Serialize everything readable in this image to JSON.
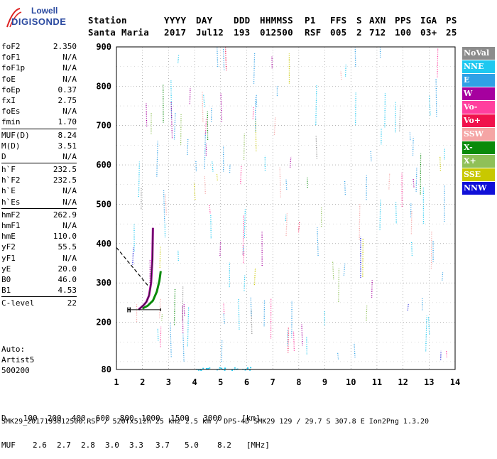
{
  "logo": {
    "line1": "Lowell",
    "line2": "DIGISONDE"
  },
  "header": {
    "labels": [
      "Station",
      "YYYY",
      "DAY",
      "DDD",
      "HHMMSS",
      "P1",
      "FFS",
      "S",
      "AXN",
      "PPS",
      "IGA",
      "PS"
    ],
    "values": [
      "Santa Maria",
      "2017",
      "Jul12",
      "193",
      "012500",
      "RSF",
      "005",
      "2",
      "712",
      "100",
      "03+",
      "25"
    ]
  },
  "params": {
    "group1": [
      {
        "name": "foF2",
        "value": "2.350"
      },
      {
        "name": "foF1",
        "value": "N/A"
      },
      {
        "name": "foF1p",
        "value": "N/A"
      },
      {
        "name": "foE",
        "value": "N/A"
      },
      {
        "name": "foEp",
        "value": "0.37"
      },
      {
        "name": "fxI",
        "value": "2.75"
      },
      {
        "name": "foEs",
        "value": "N/A"
      },
      {
        "name": "fmin",
        "value": "1.70"
      }
    ],
    "group2": [
      {
        "name": "MUF(D)",
        "value": "8.24"
      },
      {
        "name": "M(D)",
        "value": "3.51"
      },
      {
        "name": "D",
        "value": "N/A"
      }
    ],
    "group3": [
      {
        "name": "h`F",
        "value": "232.5"
      },
      {
        "name": "h`F2",
        "value": "232.5"
      },
      {
        "name": "h`E",
        "value": "N/A"
      },
      {
        "name": "h`Es",
        "value": "N/A"
      }
    ],
    "group4": [
      {
        "name": "hmF2",
        "value": "262.9"
      },
      {
        "name": "hmF1",
        "value": "N/A"
      },
      {
        "name": "hmE",
        "value": "110.0"
      },
      {
        "name": "yF2",
        "value": "55.5"
      },
      {
        "name": "yF1",
        "value": "N/A"
      },
      {
        "name": "yE",
        "value": "20.0"
      },
      {
        "name": "B0",
        "value": "46.0"
      },
      {
        "name": "B1",
        "value": "4.53"
      }
    ],
    "group5": [
      {
        "name": "C-level",
        "value": "22"
      }
    ]
  },
  "auto": {
    "line1": "Auto:",
    "line2": "Artist5",
    "line3": "500200"
  },
  "legend": [
    {
      "label": "NoVal",
      "color": "#8c8c8c"
    },
    {
      "label": "NNE",
      "color": "#1ec8f0"
    },
    {
      "label": "E",
      "color": "#2fa0e6"
    },
    {
      "label": "W",
      "color": "#a6009f"
    },
    {
      "label": "Vo-",
      "color": "#ff3f9e"
    },
    {
      "label": "Vo+",
      "color": "#f0124c"
    },
    {
      "label": "SSW",
      "color": "#f5a5a5"
    },
    {
      "label": "X-",
      "color": "#0a8a0a"
    },
    {
      "label": "X+",
      "color": "#8fc058"
    },
    {
      "label": "SSE",
      "color": "#c8c800"
    },
    {
      "label": "NNW",
      "color": "#1010d8"
    }
  ],
  "chart_data": {
    "type": "scatter",
    "title": "",
    "xlabel": "",
    "ylabel": "",
    "xlim": [
      1,
      14
    ],
    "ylim": [
      80,
      900
    ],
    "x_ticks": [
      1,
      2,
      3,
      4,
      5,
      6,
      7,
      8,
      9,
      10,
      11,
      12,
      13,
      14
    ],
    "y_ticks": [
      80,
      200,
      300,
      400,
      500,
      600,
      700,
      800,
      900
    ],
    "grid": true,
    "trace": {
      "name": "",
      "x": [
        1.85,
        1.95,
        2.05,
        2.15,
        2.25,
        2.33,
        2.38,
        2.4
      ],
      "y": [
        232,
        238,
        244,
        252,
        268,
        300,
        360,
        440
      ]
    },
    "trace_x": {
      "x": [
        2.0,
        2.2,
        2.4,
        2.55,
        2.65,
        2.7
      ],
      "y": [
        235,
        242,
        255,
        278,
        305,
        330
      ]
    },
    "annotations": [
      {
        "text": "H",
        "x": 1.4,
        "y": 225
      }
    ]
  },
  "bottom": {
    "row1_label": "D",
    "row1": [
      "100",
      "200",
      "400",
      "600",
      "800",
      "1000",
      "1500",
      "3000",
      "[km]"
    ],
    "row2_label": "MUF",
    "row2": [
      "2.6",
      "2.7",
      "2.8",
      "3.0",
      "3.3",
      "3.7",
      "5.0",
      "8.2",
      "[MHz]"
    ]
  },
  "footer": "SMK29_2017193012500.RSF / 520fx512h 25 kHz 2.5 km / DPS-4D SMK29 129 / 29.7 S 307.8 E Ion2Png 1.3.20"
}
